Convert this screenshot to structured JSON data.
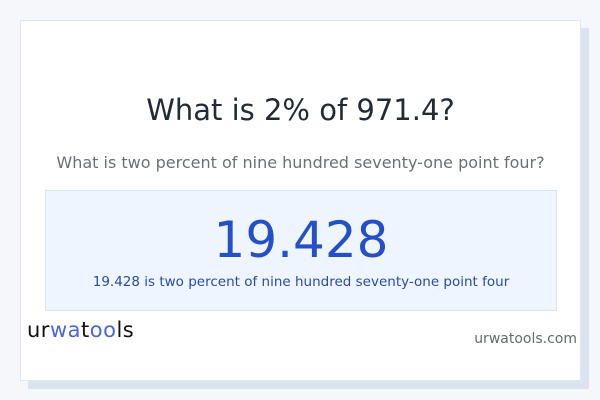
{
  "title": "What is 2% of 971.4?",
  "subtitle": "What is two percent of nine hundred seventy-one point four?",
  "result": {
    "value": "19.428",
    "description": "19.428 is two percent of nine hundred seventy-one point four"
  },
  "footer": {
    "logo": "urwatools",
    "site": "urwatools.com"
  },
  "colors": {
    "accent": "#2350c8",
    "result_bg": "#eef5ff",
    "logo_accent": "#4a66e0"
  }
}
